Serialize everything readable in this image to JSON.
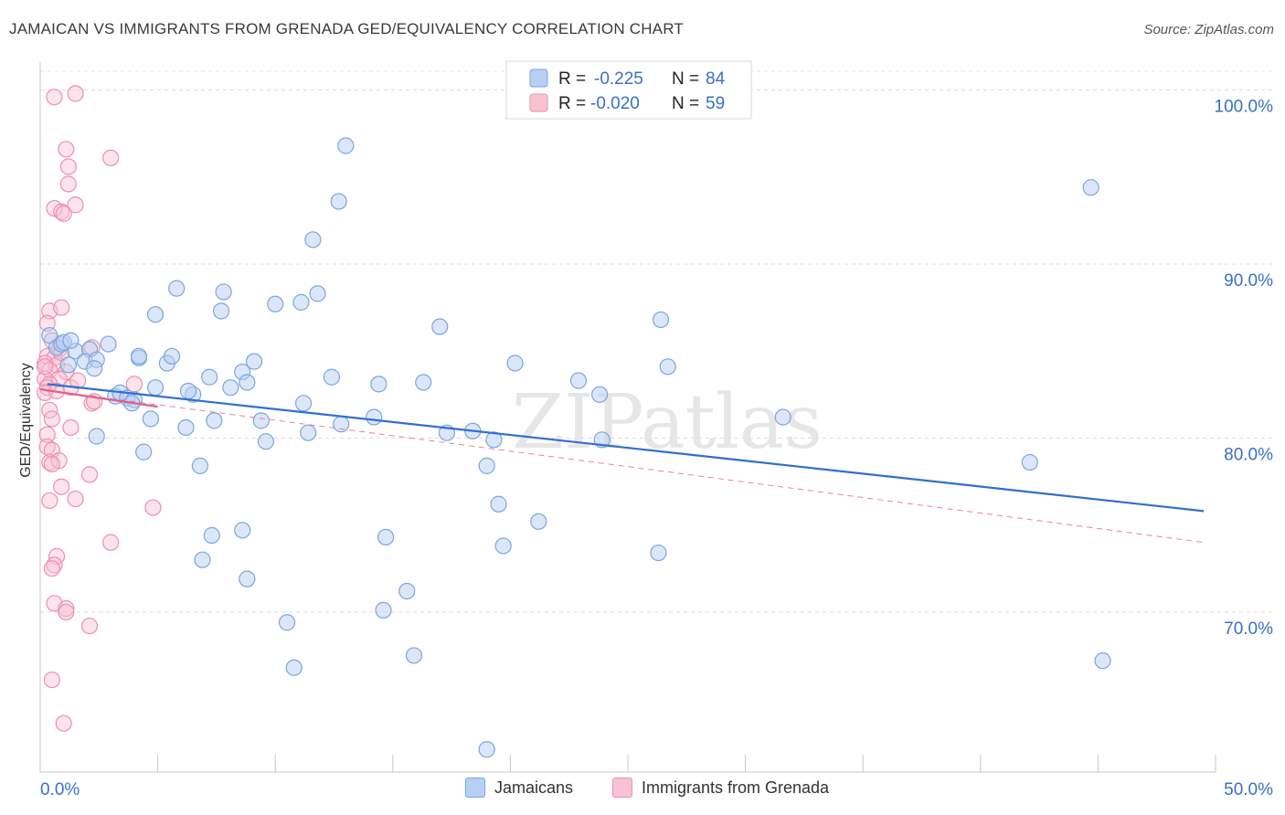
{
  "title": "JAMAICAN VS IMMIGRANTS FROM GRENADA GED/EQUIVALENCY CORRELATION CHART",
  "source": "Source: ZipAtlas.com",
  "watermark": "ZIPatlas",
  "legend_top": [
    {
      "r_label": "R = ",
      "r_value": "-0.225",
      "n_label": "N = ",
      "n_value": "84"
    },
    {
      "r_label": "R = ",
      "r_value": "-0.020",
      "n_label": "N = ",
      "n_value": "59"
    }
  ],
  "legend_bottom": [
    "Jamaicans",
    "Immigrants from Grenada"
  ],
  "colors": {
    "blue_fill": "#b7d0f2",
    "blue_stroke": "#7aa6e0",
    "blue_line": "#2f6fd0",
    "pink_fill": "#f7c3d3",
    "pink_stroke": "#ef8fae",
    "pink_line": "#e0608a",
    "axis_text": "#3a6fc4"
  },
  "chart_data": {
    "type": "scatter",
    "title": "JAMAICAN VS IMMIGRANTS FROM GRENADA GED/EQUIVALENCY CORRELATION CHART",
    "xlabel": "",
    "ylabel": "GED/Equivalency",
    "xlim": [
      0,
      50
    ],
    "ylim": [
      60.8,
      101.5
    ],
    "x_tick_labels": [
      "0.0%",
      "50.0%"
    ],
    "y_ticks": [
      70,
      80,
      90,
      100
    ],
    "y_tick_labels": [
      "70.0%",
      "80.0%",
      "90.0%",
      "100.0%"
    ],
    "grid": true,
    "series": [
      {
        "name": "Jamaicans",
        "r": -0.225,
        "n": 84,
        "trend": {
          "x": [
            0.3,
            49.5
          ],
          "y": [
            83.1,
            75.8
          ],
          "style": "solid"
        },
        "points": [
          [
            13.0,
            96.8
          ],
          [
            12.7,
            93.6
          ],
          [
            11.6,
            91.4
          ],
          [
            5.8,
            88.6
          ],
          [
            7.8,
            88.4
          ],
          [
            11.8,
            88.3
          ],
          [
            10.0,
            87.7
          ],
          [
            11.1,
            87.8
          ],
          [
            7.7,
            87.3
          ],
          [
            4.9,
            87.1
          ],
          [
            17.0,
            86.4
          ],
          [
            0.4,
            85.9
          ],
          [
            0.7,
            85.2
          ],
          [
            0.9,
            85.4
          ],
          [
            1.5,
            85.0
          ],
          [
            2.1,
            85.1
          ],
          [
            2.9,
            85.4
          ],
          [
            1.2,
            84.2
          ],
          [
            1.9,
            84.4
          ],
          [
            2.4,
            84.5
          ],
          [
            2.3,
            84.0
          ],
          [
            4.2,
            84.6
          ],
          [
            5.4,
            84.3
          ],
          [
            5.6,
            84.7
          ],
          [
            9.1,
            84.4
          ],
          [
            8.6,
            83.8
          ],
          [
            7.2,
            83.5
          ],
          [
            8.8,
            83.2
          ],
          [
            12.4,
            83.5
          ],
          [
            14.4,
            83.1
          ],
          [
            16.3,
            83.2
          ],
          [
            4.9,
            82.9
          ],
          [
            6.5,
            82.5
          ],
          [
            6.3,
            82.7
          ],
          [
            8.1,
            82.9
          ],
          [
            3.2,
            82.4
          ],
          [
            3.4,
            82.6
          ],
          [
            3.7,
            82.3
          ],
          [
            4.0,
            82.2
          ],
          [
            3.9,
            82.0
          ],
          [
            11.2,
            82.0
          ],
          [
            4.7,
            81.1
          ],
          [
            7.4,
            81.0
          ],
          [
            9.4,
            81.0
          ],
          [
            12.8,
            80.8
          ],
          [
            14.2,
            81.2
          ],
          [
            11.4,
            80.3
          ],
          [
            6.2,
            80.6
          ],
          [
            2.4,
            80.1
          ],
          [
            9.6,
            79.8
          ],
          [
            17.3,
            80.3
          ],
          [
            18.4,
            80.4
          ],
          [
            19.3,
            79.9
          ],
          [
            23.9,
            79.9
          ],
          [
            20.2,
            84.3
          ],
          [
            22.9,
            83.3
          ],
          [
            23.8,
            82.5
          ],
          [
            26.7,
            84.1
          ],
          [
            31.6,
            81.2
          ],
          [
            26.4,
            86.8
          ],
          [
            44.7,
            94.4
          ],
          [
            42.1,
            78.6
          ],
          [
            4.4,
            79.2
          ],
          [
            6.8,
            78.4
          ],
          [
            19.0,
            78.4
          ],
          [
            19.5,
            76.2
          ],
          [
            21.2,
            75.2
          ],
          [
            7.3,
            74.4
          ],
          [
            8.6,
            74.7
          ],
          [
            14.7,
            74.3
          ],
          [
            19.7,
            73.8
          ],
          [
            26.3,
            73.4
          ],
          [
            6.9,
            73.0
          ],
          [
            8.8,
            71.9
          ],
          [
            15.6,
            71.2
          ],
          [
            14.6,
            70.1
          ],
          [
            10.5,
            69.4
          ],
          [
            15.9,
            67.5
          ],
          [
            10.8,
            66.8
          ],
          [
            45.2,
            67.2
          ],
          [
            19.0,
            62.1
          ],
          [
            4.2,
            84.7
          ],
          [
            1.0,
            85.5
          ],
          [
            1.3,
            85.6
          ]
        ]
      },
      {
        "name": "Immigrants from Grenada",
        "r": -0.02,
        "n": 59,
        "trend": {
          "x": [
            0.0,
            5.0
          ],
          "y": [
            82.8,
            81.8
          ],
          "style": "solid"
        },
        "trend_extension": {
          "x": [
            0.0,
            49.5
          ],
          "y": [
            82.8,
            74.0
          ],
          "style": "dashed"
        },
        "points": [
          [
            1.5,
            99.8
          ],
          [
            0.6,
            99.6
          ],
          [
            1.1,
            96.6
          ],
          [
            3.0,
            96.1
          ],
          [
            1.2,
            95.6
          ],
          [
            1.2,
            94.6
          ],
          [
            0.6,
            93.2
          ],
          [
            1.5,
            93.4
          ],
          [
            0.9,
            93.0
          ],
          [
            1.0,
            92.9
          ],
          [
            0.4,
            87.3
          ],
          [
            0.9,
            87.5
          ],
          [
            0.3,
            86.6
          ],
          [
            0.5,
            85.6
          ],
          [
            0.8,
            85.1
          ],
          [
            0.3,
            84.7
          ],
          [
            0.6,
            84.6
          ],
          [
            0.2,
            84.3
          ],
          [
            0.7,
            84.2
          ],
          [
            0.4,
            83.9
          ],
          [
            1.1,
            83.8
          ],
          [
            2.2,
            85.2
          ],
          [
            0.2,
            83.4
          ],
          [
            0.8,
            83.4
          ],
          [
            0.4,
            83.1
          ],
          [
            0.3,
            82.9
          ],
          [
            1.3,
            82.9
          ],
          [
            0.2,
            82.6
          ],
          [
            0.7,
            82.7
          ],
          [
            4.0,
            83.1
          ],
          [
            1.6,
            83.3
          ],
          [
            2.2,
            82.0
          ],
          [
            2.3,
            82.1
          ],
          [
            0.4,
            81.6
          ],
          [
            0.5,
            81.1
          ],
          [
            0.3,
            80.2
          ],
          [
            1.3,
            80.6
          ],
          [
            0.3,
            79.5
          ],
          [
            0.5,
            79.3
          ],
          [
            0.4,
            78.6
          ],
          [
            0.8,
            78.7
          ],
          [
            0.5,
            78.5
          ],
          [
            2.1,
            77.9
          ],
          [
            0.9,
            77.2
          ],
          [
            0.4,
            76.4
          ],
          [
            1.5,
            76.5
          ],
          [
            4.8,
            76.0
          ],
          [
            3.0,
            74.0
          ],
          [
            0.7,
            73.2
          ],
          [
            0.6,
            72.7
          ],
          [
            0.5,
            72.5
          ],
          [
            0.6,
            70.5
          ],
          [
            1.1,
            70.2
          ],
          [
            1.1,
            70.0
          ],
          [
            2.1,
            69.2
          ],
          [
            0.5,
            66.1
          ],
          [
            1.0,
            63.6
          ],
          [
            0.2,
            84.1
          ],
          [
            0.9,
            84.9
          ]
        ]
      }
    ]
  }
}
